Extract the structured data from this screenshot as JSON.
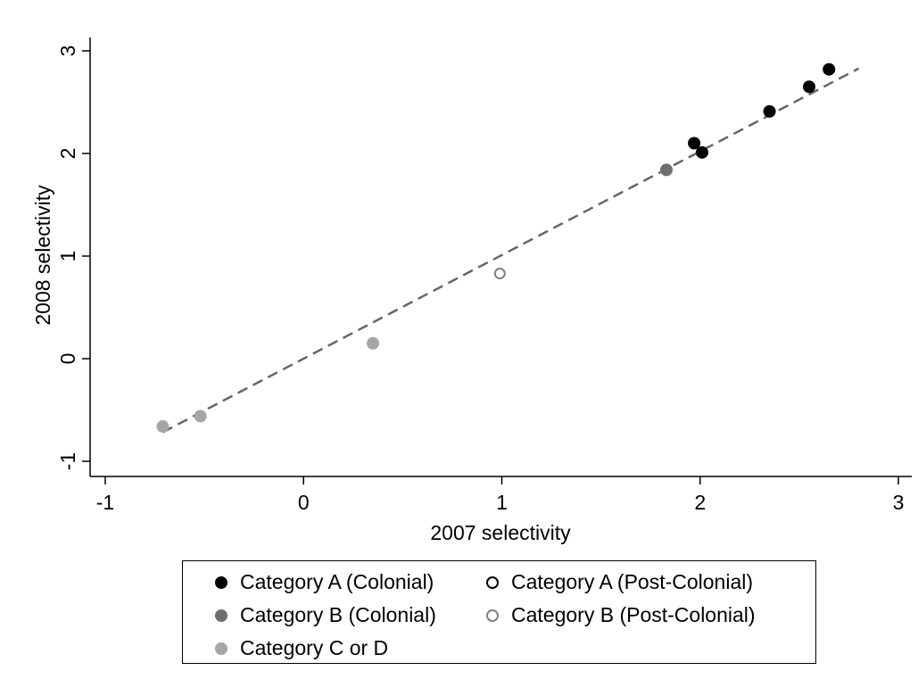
{
  "chart_data": {
    "type": "scatter",
    "xlabel": "2007 selectivity",
    "ylabel": "2008 selectivity",
    "xlim": [
      -1,
      3
    ],
    "ylim": [
      -1,
      3
    ],
    "xticks": [
      "-1",
      "0",
      "1",
      "2",
      "3"
    ],
    "yticks": [
      "-1",
      "0",
      "1",
      "2",
      "3"
    ],
    "grid": false,
    "legend_position": "bottom",
    "series": [
      {
        "name": "Category A (Colonial)",
        "marker": "filled",
        "color": "#000000",
        "points": [
          {
            "x": 1.97,
            "y": 2.1
          },
          {
            "x": 2.01,
            "y": 2.01
          },
          {
            "x": 2.35,
            "y": 2.41
          },
          {
            "x": 2.55,
            "y": 2.65
          },
          {
            "x": 2.65,
            "y": 2.82
          }
        ]
      },
      {
        "name": "Category A (Post-Colonial)",
        "marker": "hollow",
        "color": "#000000",
        "points": []
      },
      {
        "name": "Category B (Colonial)",
        "marker": "filled",
        "color": "#6e6e6e",
        "points": [
          {
            "x": 1.83,
            "y": 1.84
          }
        ]
      },
      {
        "name": "Category B (Post-Colonial)",
        "marker": "hollow",
        "color": "#7f7f7f",
        "points": [
          {
            "x": 0.99,
            "y": 0.83
          }
        ]
      },
      {
        "name": "Category C or D",
        "marker": "filled",
        "color": "#a6a6a6",
        "points": [
          {
            "x": -0.71,
            "y": -0.66
          },
          {
            "x": -0.52,
            "y": -0.56
          },
          {
            "x": 0.35,
            "y": 0.15
          }
        ]
      }
    ],
    "fit_line": {
      "style": "dashed",
      "color": "#666666",
      "x_range": [
        -0.71,
        2.8
      ],
      "slope": 1.01,
      "intercept": 0.0
    }
  }
}
